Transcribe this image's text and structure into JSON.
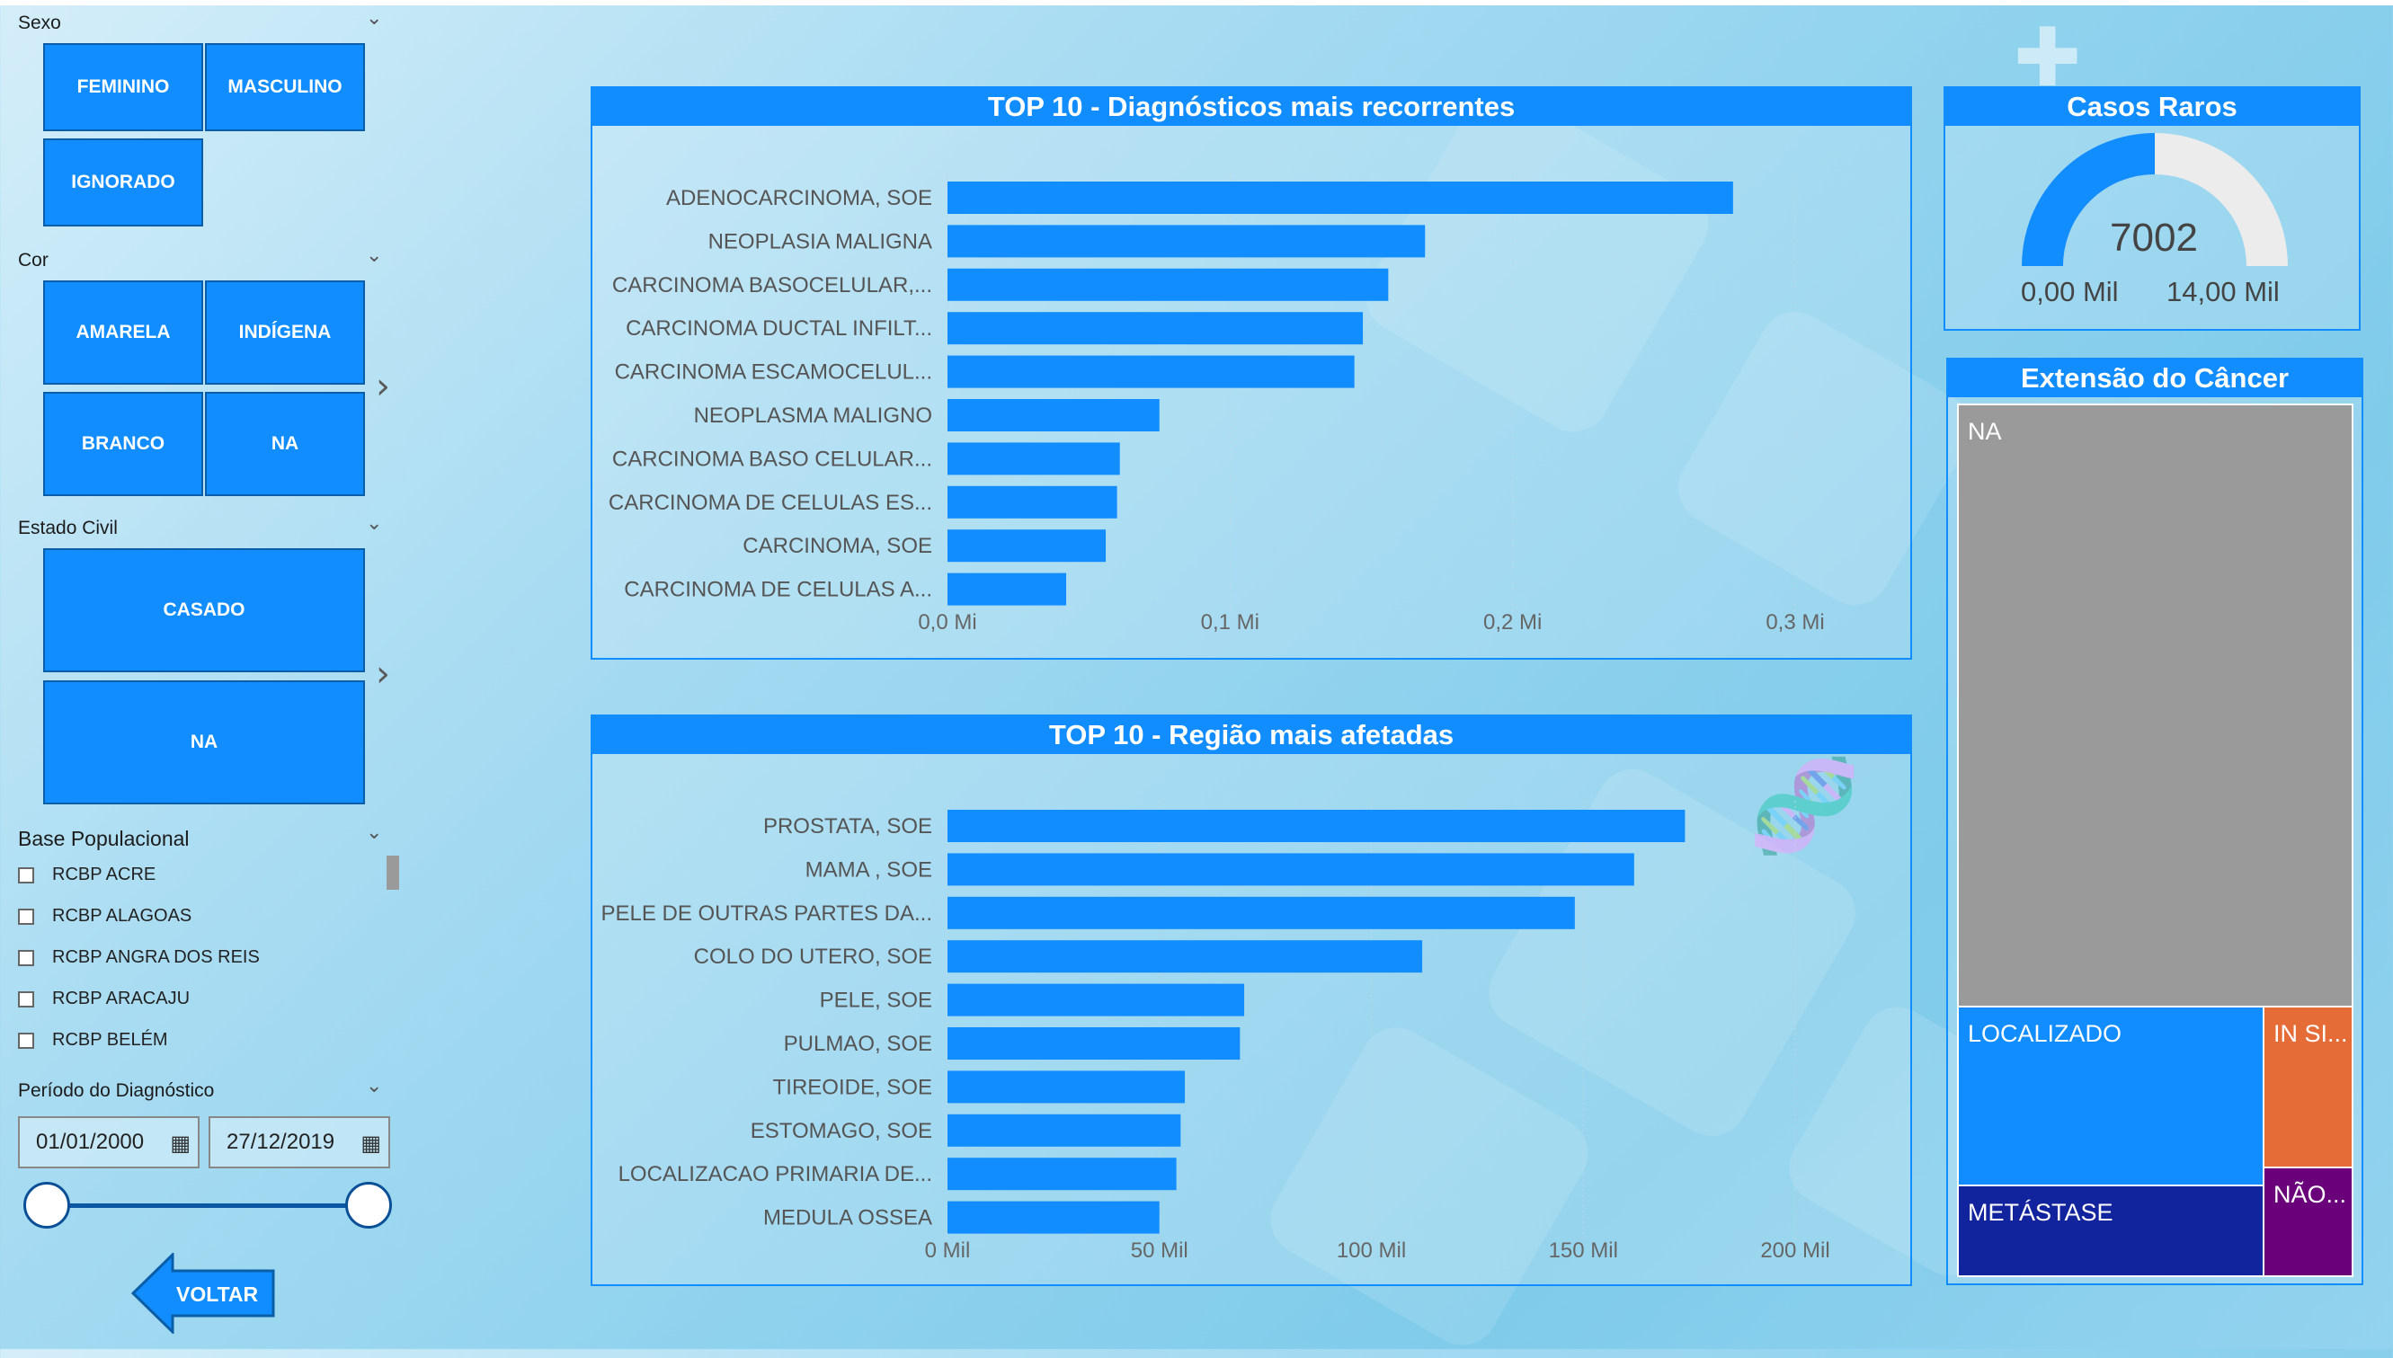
{
  "filters": {
    "sexo": {
      "label": "Sexo",
      "options": [
        "FEMININO",
        "MASCULINO",
        "IGNORADO"
      ]
    },
    "cor": {
      "label": "Cor",
      "options": [
        "AMARELA",
        "INDÍGENA",
        "BRANCO",
        "NA"
      ]
    },
    "estado_civil": {
      "label": "Estado Civil",
      "options": [
        "CASADO",
        "NA"
      ]
    },
    "base_populacional": {
      "label": "Base Populacional",
      "items": [
        "RCBP ACRE",
        "RCBP ALAGOAS",
        "RCBP ANGRA DOS REIS",
        "RCBP ARACAJU",
        "RCBP BELÉM"
      ]
    },
    "periodo": {
      "label": "Período do Diagnóstico",
      "start": "01/01/2000",
      "end": "27/12/2019"
    }
  },
  "back_button": {
    "label": "VOLTAR"
  },
  "diagnosticos": {
    "title": "TOP 10 - Diagnósticos mais recorrentes",
    "chart_data": {
      "type": "bar",
      "orientation": "horizontal",
      "categories": [
        "ADENOCARCINOMA, SOE",
        "NEOPLASIA MALIGNA",
        "CARCINOMA BASOCELULAR,...",
        "CARCINOMA DUCTAL INFILT...",
        "CARCINOMA ESCAMOCELUL...",
        "NEOPLASMA MALIGNO",
        "CARCINOMA BASO CELULAR...",
        "CARCINOMA DE CELULAS ES...",
        "CARCINOMA, SOE",
        "CARCINOMA DE CELULAS A..."
      ],
      "values": [
        0.278,
        0.169,
        0.156,
        0.147,
        0.144,
        0.075,
        0.061,
        0.06,
        0.056,
        0.042
      ],
      "xticks": [
        "0,0 Mi",
        "0,1 Mi",
        "0,2 Mi",
        "0,3 Mi"
      ],
      "xlim": [
        0,
        0.3
      ],
      "bar_color": "#118dff"
    }
  },
  "regioes": {
    "title": "TOP 10 - Região mais afetadas",
    "chart_data": {
      "type": "bar",
      "orientation": "horizontal",
      "categories": [
        "PROSTATA, SOE",
        "MAMA , SOE",
        "PELE DE OUTRAS PARTES DA...",
        "COLO DO UTERO, SOE",
        "PELE, SOE",
        "PULMAO, SOE",
        "TIREOIDE, SOE",
        "ESTOMAGO, SOE",
        "LOCALIZACAO PRIMARIA DE...",
        "MEDULA OSSEA"
      ],
      "values": [
        174,
        162,
        148,
        112,
        70,
        69,
        56,
        55,
        54,
        50
      ],
      "xticks": [
        "0 Mil",
        "50 Mil",
        "100 Mil",
        "150 Mil",
        "200 Mil"
      ],
      "xlim": [
        0,
        200
      ],
      "bar_color": "#118dff"
    }
  },
  "casos_raros": {
    "title": "Casos Raros",
    "value": "7002",
    "min_label": "0,00 Mil",
    "max_label": "14,00 Mil",
    "fraction": 0.5,
    "fill_color": "#118dff",
    "rest_color": "#ececec"
  },
  "extensao": {
    "title": "Extensão do Câncer",
    "segments": [
      {
        "label": "NA",
        "color": "#9a9a9a"
      },
      {
        "label": "LOCALIZADO",
        "color": "#118dff"
      },
      {
        "label": "IN SI...",
        "color": "#e66c37"
      },
      {
        "label": "METÁSTASE",
        "color": "#12239e"
      },
      {
        "label": "NÃO...",
        "color": "#6b007b"
      }
    ]
  }
}
